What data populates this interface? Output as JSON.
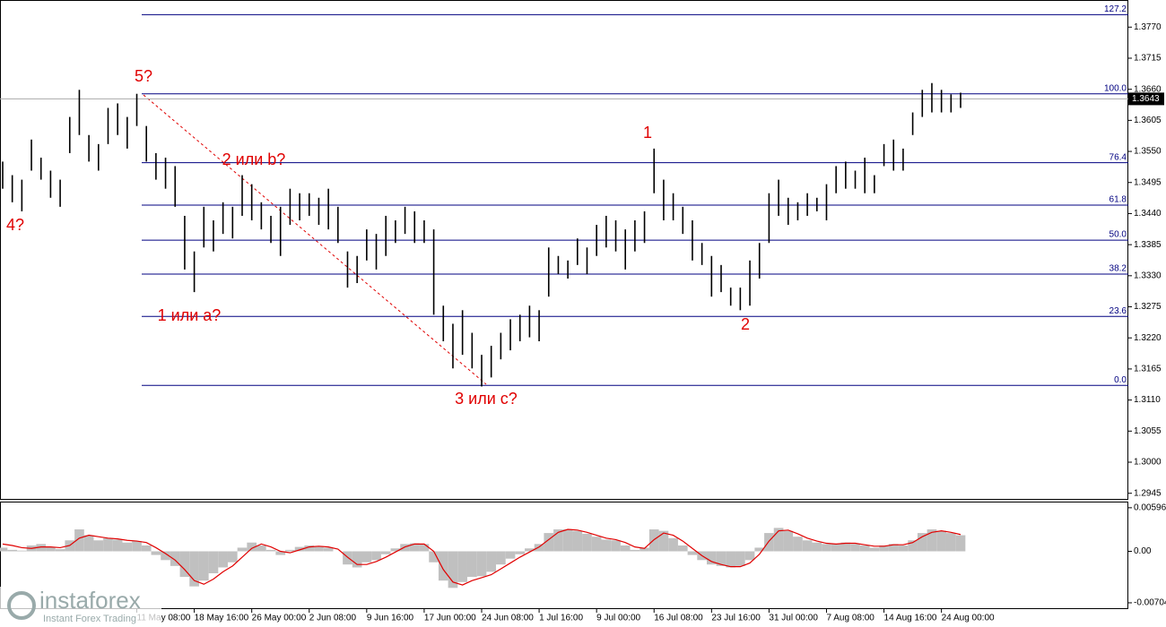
{
  "chart_data": [
    {
      "type": "range_bar",
      "color": "#000000",
      "categories": [
        null,
        null,
        null,
        null,
        null,
        null,
        null,
        null,
        null,
        null,
        null,
        null,
        null,
        null,
        "11 May 08:00",
        null,
        null,
        null,
        null,
        null,
        "18 May 16:00",
        null,
        null,
        null,
        null,
        null,
        "26 May 00:00",
        null,
        null,
        null,
        null,
        null,
        "2 Jun 08:00",
        null,
        null,
        null,
        null,
        null,
        "9 Jun 16:00",
        null,
        null,
        null,
        null,
        null,
        "17 Jun 00:00",
        null,
        null,
        null,
        null,
        null,
        "24 Jun 08:00",
        null,
        null,
        null,
        null,
        null,
        "1 Jul 16:00",
        null,
        null,
        null,
        null,
        null,
        "9 Jul 00:00",
        null,
        null,
        null,
        null,
        null,
        "16 Jul 08:00",
        null,
        null,
        null,
        null,
        null,
        "23 Jul 16:00",
        null,
        null,
        null,
        null,
        null,
        "31 Jul 00:00",
        null,
        null,
        null,
        null,
        null,
        "7 Aug 08:00",
        null,
        null,
        null,
        null,
        null,
        "14 Aug 16:00",
        null,
        null,
        null,
        null,
        null,
        "24 Aug 00:00",
        null,
        null
      ],
      "high": [
        1.3532,
        1.3508,
        1.35,
        1.3571,
        1.3539,
        1.3516,
        1.35,
        1.3611,
        1.3659,
        1.3579,
        1.3563,
        1.3627,
        1.3635,
        1.3611,
        1.3652,
        1.3595,
        1.3547,
        1.3539,
        1.3524,
        1.3436,
        1.3373,
        1.3452,
        1.3428,
        1.346,
        1.3452,
        1.3508,
        1.3492,
        1.346,
        1.3436,
        1.3452,
        1.3484,
        1.3476,
        1.3476,
        1.3468,
        1.3484,
        1.3452,
        1.3373,
        1.3365,
        1.3412,
        1.3404,
        1.3436,
        1.3428,
        1.3452,
        1.3444,
        1.3428,
        1.3412,
        1.3277,
        1.3245,
        1.3269,
        1.3229,
        1.319,
        1.3206,
        1.3229,
        1.3253,
        1.3261,
        1.3277,
        1.3269,
        1.338,
        1.3365,
        1.3357,
        1.3396,
        1.338,
        1.342,
        1.3436,
        1.3428,
        1.3412,
        1.3428,
        1.3444,
        1.3555,
        1.35,
        1.3476,
        1.3452,
        1.3428,
        1.3388,
        1.3365,
        1.3349,
        1.3309,
        1.3309,
        1.3357,
        1.3388,
        1.3476,
        1.35,
        1.3468,
        1.346,
        1.3476,
        1.3468,
        1.3492,
        1.3524,
        1.3532,
        1.3516,
        1.3539,
        1.3508,
        1.3563,
        1.3571,
        1.3555,
        1.3619,
        1.3659,
        1.3671,
        1.3659,
        1.3651,
        1.3654
      ],
      "low": [
        1.3484,
        1.346,
        1.3444,
        1.3516,
        1.35,
        1.3468,
        1.3452,
        1.3547,
        1.3579,
        1.3532,
        1.3516,
        1.3563,
        1.3579,
        1.3555,
        1.3595,
        1.3532,
        1.35,
        1.3484,
        1.3452,
        1.3341,
        1.3301,
        1.338,
        1.3373,
        1.3404,
        1.3396,
        1.3436,
        1.3428,
        1.3412,
        1.3388,
        1.3365,
        1.342,
        1.3428,
        1.3436,
        1.342,
        1.3412,
        1.3388,
        1.3309,
        1.3317,
        1.3357,
        1.3341,
        1.3365,
        1.3388,
        1.3404,
        1.3388,
        1.3388,
        1.3261,
        1.3214,
        1.3166,
        1.319,
        1.3166,
        1.3134,
        1.315,
        1.3182,
        1.3198,
        1.3214,
        1.3221,
        1.3214,
        1.3293,
        1.3333,
        1.3325,
        1.3349,
        1.3333,
        1.3365,
        1.338,
        1.3373,
        1.3341,
        1.3373,
        1.3388,
        1.3476,
        1.3428,
        1.3428,
        1.3404,
        1.3357,
        1.3349,
        1.3293,
        1.3301,
        1.3277,
        1.3269,
        1.3277,
        1.3325,
        1.3388,
        1.3436,
        1.342,
        1.3428,
        1.3436,
        1.3444,
        1.3428,
        1.3476,
        1.3484,
        1.3484,
        1.3476,
        1.3476,
        1.3524,
        1.3516,
        1.3516,
        1.3579,
        1.3611,
        1.3619,
        1.3619,
        1.3619,
        1.3627
      ],
      "ylim": [
        1.2935,
        1.3818
      ],
      "yticks": [
        {
          "value": 1.377,
          "label": "1.3770"
        },
        1.3715,
        {
          "value": 1.366,
          "label": "1.3660"
        },
        1.3605,
        {
          "value": 1.355,
          "label": "1.3550"
        },
        1.3495,
        {
          "value": 1.344,
          "label": "1.3440"
        },
        1.3385,
        {
          "value": 1.333,
          "label": "1.3330"
        },
        1.3275,
        {
          "value": 1.322,
          "label": "1.3220"
        },
        1.3165,
        {
          "value": 1.311,
          "label": "1.3110"
        },
        1.3055,
        {
          "value": 1.3,
          "label": "1.3000"
        },
        1.2945
      ],
      "current_price": 1.3643,
      "fib_levels": [
        {
          "label": "127.2",
          "price": 1.3792
        },
        {
          "label": "100.0",
          "price": 1.3652
        },
        {
          "label": "76.4",
          "price": 1.353
        },
        {
          "label": "61.8",
          "price": 1.3455
        },
        {
          "label": "50.0",
          "price": 1.3393
        },
        {
          "label": "38.2",
          "price": 1.3333
        },
        {
          "label": "23.6",
          "price": 1.3258
        },
        {
          "label": "0.0",
          "price": 1.3136
        }
      ],
      "fib_color": "#000080",
      "annotations": [
        "5?",
        "4?",
        "2 или b?",
        "1 или a?",
        "3 или c?",
        "1",
        "2"
      ],
      "annotation_color": "#e00000"
    },
    {
      "type": "macd",
      "ylim": [
        -0.0079,
        0.0068
      ],
      "yticks": [
        0.00596,
        {
          "value": 0,
          "label": "0.00"
        },
        -0.00704
      ],
      "series": [
        {
          "kind": "bar",
          "color": "#c0c0c0",
          "values": [
            0.0005,
            0.0002,
            0.0001,
            0.0008,
            0.001,
            0.0006,
            0.0003,
            0.0015,
            0.003,
            0.0022,
            0.0015,
            0.0018,
            0.0016,
            0.0012,
            0.0014,
            0.0008,
            -0.0005,
            -0.0012,
            -0.002,
            -0.0035,
            -0.0048,
            -0.004,
            -0.003,
            -0.0022,
            -0.0015,
            0.0005,
            0.0012,
            0.0008,
            0.0002,
            -0.0005,
            0.0002,
            0.0006,
            0.0008,
            0.0007,
            0.0005,
            0.0,
            -0.0018,
            -0.0022,
            -0.0015,
            -0.0012,
            -0.0004,
            0.0004,
            0.001,
            0.0011,
            0.001,
            -0.0015,
            -0.004,
            -0.005,
            -0.0042,
            -0.0035,
            -0.0034,
            -0.0028,
            -0.0018,
            -0.001,
            -0.0004,
            0.0004,
            0.001,
            0.0025,
            0.003,
            0.003,
            0.0028,
            0.0024,
            0.002,
            0.0016,
            0.0015,
            0.0008,
            0.0002,
            0.0005,
            0.003,
            0.0028,
            0.0018,
            0.0008,
            -0.0005,
            -0.0012,
            -0.0018,
            -0.002,
            -0.0022,
            -0.002,
            -0.0012,
            0.0005,
            0.0025,
            0.0032,
            0.0028,
            0.002,
            0.0015,
            0.0012,
            0.001,
            0.001,
            0.0012,
            0.001,
            0.0008,
            0.0005,
            0.0008,
            0.001,
            0.0008,
            0.0015,
            0.0025,
            0.003,
            0.0028,
            0.0025,
            0.0022
          ]
        },
        {
          "kind": "line",
          "color": "#e00000",
          "values": [
            0.001,
            0.0008,
            0.0005,
            0.0004,
            0.0006,
            0.0006,
            0.0005,
            0.0008,
            0.0018,
            0.0022,
            0.002,
            0.0018,
            0.0017,
            0.0015,
            0.0014,
            0.0012,
            0.0005,
            -0.0003,
            -0.0012,
            -0.0025,
            -0.004,
            -0.0045,
            -0.0038,
            -0.0028,
            -0.002,
            -0.0008,
            0.0004,
            0.001,
            0.0006,
            0.0,
            -0.0002,
            0.0002,
            0.0006,
            0.0007,
            0.0006,
            0.0003,
            -0.0008,
            -0.0018,
            -0.0018,
            -0.0014,
            -0.0008,
            -0.0001,
            0.0006,
            0.001,
            0.001,
            0.0,
            -0.0025,
            -0.0042,
            -0.0046,
            -0.004,
            -0.0036,
            -0.0032,
            -0.0024,
            -0.0016,
            -0.0008,
            -0.0001,
            0.0006,
            0.0016,
            0.0026,
            0.003,
            0.0029,
            0.0026,
            0.0022,
            0.0018,
            0.0016,
            0.0012,
            0.0006,
            0.0004,
            0.0016,
            0.0025,
            0.0022,
            0.0014,
            0.0004,
            -0.0006,
            -0.0014,
            -0.0018,
            -0.0021,
            -0.0021,
            -0.0016,
            -0.0004,
            0.0014,
            0.0028,
            0.0029,
            0.0024,
            0.0018,
            0.0014,
            0.0011,
            0.001,
            0.0011,
            0.0011,
            0.0009,
            0.0007,
            0.0007,
            0.0009,
            0.0009,
            0.0012,
            0.002,
            0.0026,
            0.0028,
            0.0026,
            0.0023
          ]
        }
      ]
    }
  ],
  "watermark": {
    "brand": "instaforex",
    "tagline": "Instant Forex Trading"
  }
}
